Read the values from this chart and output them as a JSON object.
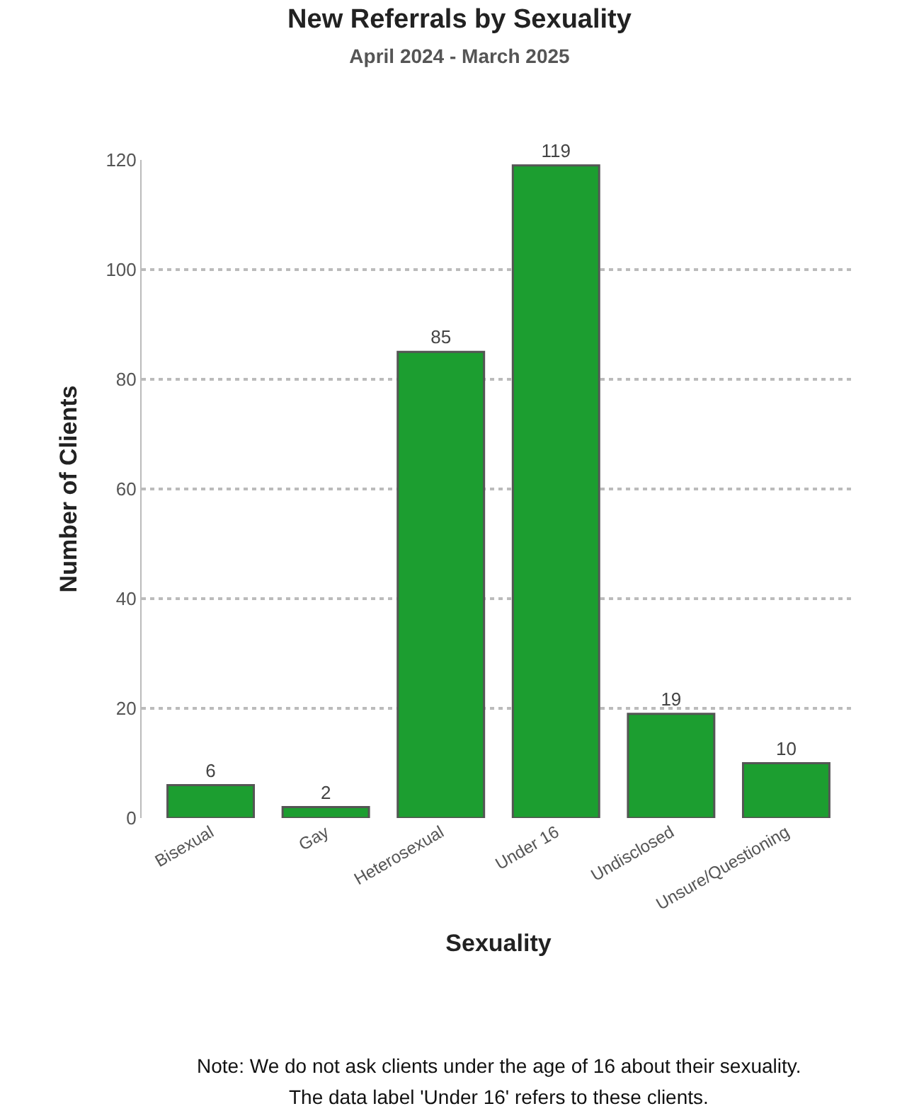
{
  "chart_data": {
    "type": "bar",
    "title": "New Referrals by Sexuality",
    "subtitle": "April 2024 - March 2025",
    "xlabel": "Sexuality",
    "ylabel": "Number of Clients",
    "categories": [
      "Bisexual",
      "Gay",
      "Heterosexual",
      "Under 16",
      "Undisclosed",
      "Unsure/Questioning"
    ],
    "values": [
      6,
      2,
      85,
      119,
      19,
      10
    ],
    "color": "#1c9e30",
    "ylim": [
      0,
      120
    ],
    "yticks": [
      0,
      20,
      40,
      60,
      80,
      100,
      120
    ],
    "grid": "y",
    "data_labels": true,
    "legend": false,
    "annotations": [
      "Note: We do not ask clients under the age of 16 about their sexuality.",
      "The data label 'Under 16' refers to these clients."
    ]
  }
}
